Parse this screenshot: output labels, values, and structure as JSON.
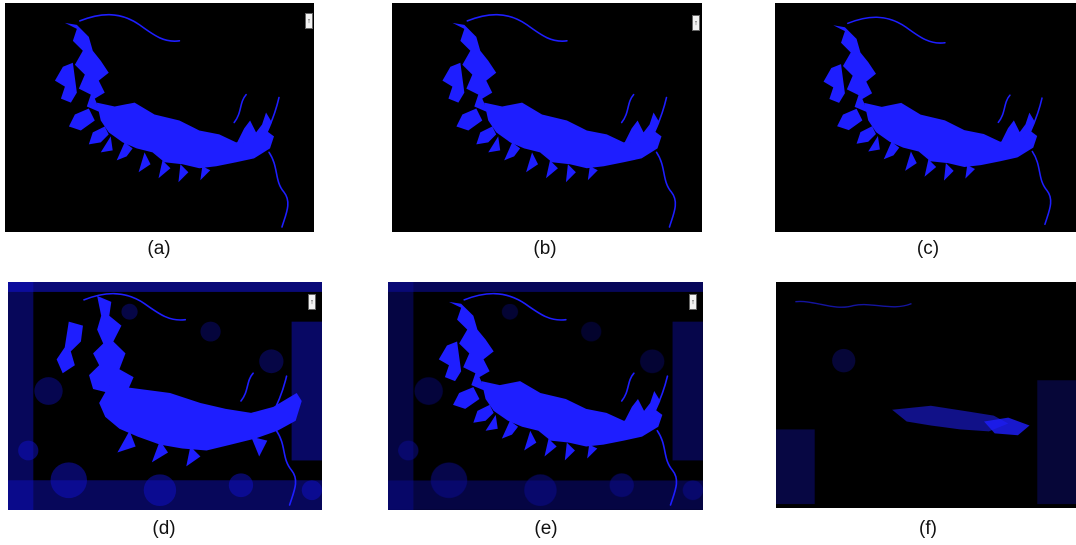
{
  "panels": [
    {
      "id": "a",
      "caption": "(a)",
      "style": "clean"
    },
    {
      "id": "b",
      "caption": "(b)",
      "style": "clean"
    },
    {
      "id": "c",
      "caption": "(c)",
      "style": "clean"
    },
    {
      "id": "d",
      "caption": "(d)",
      "style": "noisy"
    },
    {
      "id": "e",
      "caption": "(e)",
      "style": "noisy"
    },
    {
      "id": "f",
      "caption": "(f)",
      "style": "faint"
    }
  ],
  "colors": {
    "background": "#000000",
    "water": "#1e1eff",
    "faint_water": "#1414a0"
  },
  "icon": "north-arrow-icon"
}
